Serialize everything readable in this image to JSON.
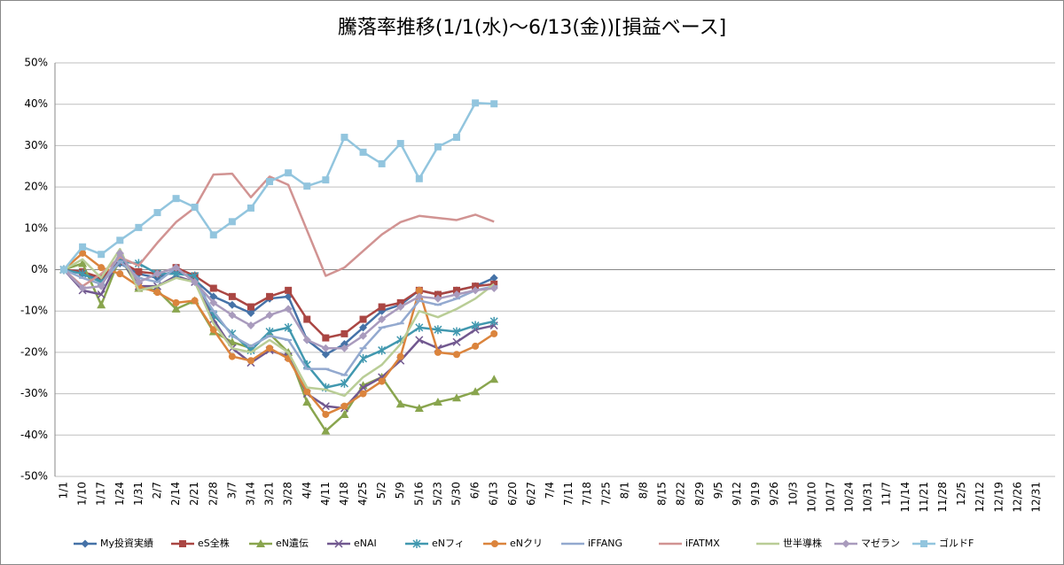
{
  "chart_data": {
    "type": "line",
    "title": "騰落率推移(1/1(水)～6/13(金))[損益ベース]",
    "categories": [
      "1/1",
      "1/10",
      "1/17",
      "1/24",
      "1/31",
      "2/7",
      "2/14",
      "2/21",
      "2/28",
      "3/7",
      "3/14",
      "3/21",
      "3/28",
      "4/4",
      "4/11",
      "4/18",
      "4/25",
      "5/2",
      "5/9",
      "5/16",
      "5/23",
      "5/30",
      "6/6",
      "6/13",
      "6/20",
      "6/27",
      "7/4",
      "7/11",
      "7/18",
      "7/25",
      "8/1",
      "8/8",
      "8/15",
      "8/22",
      "8/29",
      "9/5",
      "9/12",
      "9/19",
      "9/26",
      "10/3",
      "10/10",
      "10/17",
      "10/24",
      "10/31",
      "11/7",
      "11/14",
      "11/21",
      "11/28",
      "12/5",
      "12/12",
      "12/19",
      "12/26",
      "12/31"
    ],
    "ylim": [
      -50,
      50
    ],
    "yticks": [
      {
        "value": -50,
        "label": "-50%"
      },
      {
        "value": -40,
        "label": "-40%"
      },
      {
        "value": -30,
        "label": "-30%"
      },
      {
        "value": -20,
        "label": "-20%"
      },
      {
        "value": -10,
        "label": "-10%"
      },
      {
        "value": 0,
        "label": "0%"
      },
      {
        "value": 10,
        "label": "10%"
      },
      {
        "value": 20,
        "label": "20%"
      },
      {
        "value": 30,
        "label": "30%"
      },
      {
        "value": 40,
        "label": "40%"
      },
      {
        "value": 50,
        "label": "50%"
      }
    ],
    "grid": true,
    "legend": "bottom",
    "series": [
      {
        "name": "My投資実績",
        "color": "#4572a7",
        "marker": "diamond",
        "values": [
          0,
          -1,
          -2.5,
          1.5,
          -1,
          -2,
          0,
          -2.5,
          -6.5,
          -8.5,
          -10.5,
          -7,
          -6.5,
          -17,
          -20.5,
          -18,
          -14,
          -10,
          -8.5,
          -5,
          -6,
          -5,
          -4,
          -2,
          null,
          null,
          null,
          null,
          null,
          null,
          null,
          null,
          null,
          null,
          null,
          null,
          null,
          null,
          null,
          null,
          null,
          null,
          null,
          null,
          null,
          null,
          null,
          null,
          null,
          null,
          null,
          null,
          null
        ]
      },
      {
        "name": "eS全株",
        "color": "#aa4643",
        "marker": "square",
        "values": [
          0,
          -0.5,
          -2,
          2,
          -0.5,
          -1,
          0.5,
          -1.5,
          -4.5,
          -6.5,
          -9,
          -6.5,
          -5,
          -12,
          -16.5,
          -15.5,
          -12,
          -9,
          -8,
          -5,
          -6,
          -5,
          -4,
          -3.5,
          null,
          null,
          null,
          null,
          null,
          null,
          null,
          null,
          null,
          null,
          null,
          null,
          null,
          null,
          null,
          null,
          null,
          null,
          null,
          null,
          null,
          null,
          null,
          null,
          null,
          null,
          null,
          null,
          null
        ]
      },
      {
        "name": "eN遺伝",
        "color": "#89a54e",
        "marker": "triangle",
        "values": [
          0,
          1.5,
          -8.5,
          3,
          -4.5,
          -5,
          -9.5,
          -7.5,
          -15,
          -17.5,
          -19,
          -15.5,
          -20,
          -32,
          -39,
          -35,
          -28,
          -26,
          -32.5,
          -33.5,
          -32,
          -31,
          -29.5,
          -26.5,
          null,
          null,
          null,
          null,
          null,
          null,
          null,
          null,
          null,
          null,
          null,
          null,
          null,
          null,
          null,
          null,
          null,
          null,
          null,
          null,
          null,
          null,
          null,
          null,
          null,
          null,
          null,
          null,
          null
        ]
      },
      {
        "name": "eNAI",
        "color": "#71588f",
        "marker": "x",
        "values": [
          0,
          -5,
          -6,
          3,
          -4,
          -4,
          -1.5,
          -3,
          -12,
          -19,
          -22.5,
          -19.5,
          -21,
          -30,
          -33,
          -33.5,
          -28.5,
          -26,
          -22,
          -17,
          -19,
          -17.5,
          -14.5,
          -13.5,
          null,
          null,
          null,
          null,
          null,
          null,
          null,
          null,
          null,
          null,
          null,
          null,
          null,
          null,
          null,
          null,
          null,
          null,
          null,
          null,
          null,
          null,
          null,
          null,
          null,
          null,
          null,
          null,
          null
        ]
      },
      {
        "name": "eNフィ",
        "color": "#4198af",
        "marker": "star",
        "values": [
          0,
          -1,
          -3,
          2,
          1.5,
          -1,
          -1,
          -1.5,
          -11,
          -15.5,
          -19.5,
          -15,
          -14,
          -23,
          -28.5,
          -27.5,
          -21.5,
          -19.5,
          -17,
          -14,
          -14.5,
          -15,
          -13.5,
          -12.5,
          null,
          null,
          null,
          null,
          null,
          null,
          null,
          null,
          null,
          null,
          null,
          null,
          null,
          null,
          null,
          null,
          null,
          null,
          null,
          null,
          null,
          null,
          null,
          null,
          null,
          null,
          null,
          null,
          null
        ]
      },
      {
        "name": "eNクリ",
        "color": "#db843d",
        "marker": "circle",
        "values": [
          0,
          4,
          0.5,
          -1,
          -4,
          -5.5,
          -8,
          -7.5,
          -14.5,
          -21,
          -22,
          -19,
          -21.5,
          -29.5,
          -35,
          -33,
          -30,
          -27,
          -21,
          -5,
          -20,
          -20.5,
          -18.5,
          -15.5,
          null,
          null,
          null,
          null,
          null,
          null,
          null,
          null,
          null,
          null,
          null,
          null,
          null,
          null,
          null,
          null,
          null,
          null,
          null,
          null,
          null,
          null,
          null,
          null,
          null,
          null,
          null,
          null,
          null
        ]
      },
      {
        "name": "iFFANG",
        "color": "#93a9cf",
        "marker": "dash",
        "values": [
          0,
          -2,
          -3.5,
          2,
          -2,
          -3,
          0.5,
          -3,
          -10,
          -16,
          -18.5,
          -16,
          -17,
          -24,
          -24,
          -25.5,
          -19,
          -14,
          -13,
          -7.5,
          -8.5,
          -7,
          -5,
          -4,
          null,
          null,
          null,
          null,
          null,
          null,
          null,
          null,
          null,
          null,
          null,
          null,
          null,
          null,
          null,
          null,
          null,
          null,
          null,
          null,
          null,
          null,
          null,
          null,
          null,
          null,
          null,
          null,
          null
        ]
      },
      {
        "name": "iFATMX",
        "color": "#d19392",
        "marker": "none",
        "values": [
          0,
          -4,
          -1,
          3,
          1,
          6.5,
          11.5,
          15,
          23,
          23.2,
          17.5,
          22.5,
          20.5,
          9.5,
          -1.5,
          0.5,
          4.5,
          8.5,
          11.5,
          13,
          12.5,
          12,
          13.3,
          11.6,
          null,
          null,
          null,
          null,
          null,
          null,
          null,
          null,
          null,
          null,
          null,
          null,
          null,
          null,
          null,
          null,
          null,
          null,
          null,
          null,
          null,
          null,
          null,
          null,
          null,
          null,
          null,
          null,
          null
        ]
      },
      {
        "name": "世半導株",
        "color": "#b9cd96",
        "marker": "none",
        "values": [
          0,
          2.5,
          -2,
          5,
          -5,
          -4,
          -2,
          -3,
          -13,
          -19,
          -20,
          -17,
          -20,
          -28.5,
          -29,
          -30.5,
          -26,
          -23,
          -18,
          -10,
          -11.5,
          -9.5,
          -7,
          -3.5,
          null,
          null,
          null,
          null,
          null,
          null,
          null,
          null,
          null,
          null,
          null,
          null,
          null,
          null,
          null,
          null,
          null,
          null,
          null,
          null,
          null,
          null,
          null,
          null,
          null,
          null,
          null,
          null,
          null
        ]
      },
      {
        "name": "マゼラン",
        "color": "#a99bbd",
        "marker": "diamond",
        "values": [
          0,
          -4.5,
          -4,
          4,
          -3,
          -1,
          0.5,
          -3,
          -8,
          -11,
          -13.5,
          -11,
          -9.5,
          -17,
          -19,
          -19,
          -16,
          -12,
          -9,
          -6.5,
          -7,
          -6,
          -5,
          -4.5,
          null,
          null,
          null,
          null,
          null,
          null,
          null,
          null,
          null,
          null,
          null,
          null,
          null,
          null,
          null,
          null,
          null,
          null,
          null,
          null,
          null,
          null,
          null,
          null,
          null,
          null,
          null,
          null,
          null
        ]
      },
      {
        "name": "ゴルドF",
        "color": "#92c5de",
        "marker": "square",
        "values": [
          0,
          5.5,
          3.7,
          7.1,
          10.2,
          13.8,
          17.2,
          15.1,
          8.4,
          11.6,
          14.9,
          21.3,
          23.4,
          20.2,
          21.7,
          32,
          28.4,
          25.6,
          30.5,
          22,
          29.7,
          32,
          40.3,
          40.1,
          null,
          null,
          null,
          null,
          null,
          null,
          null,
          null,
          null,
          null,
          null,
          null,
          null,
          null,
          null,
          null,
          null,
          null,
          null,
          null,
          null,
          null,
          null,
          null,
          null,
          null,
          null,
          null,
          null
        ]
      }
    ]
  }
}
